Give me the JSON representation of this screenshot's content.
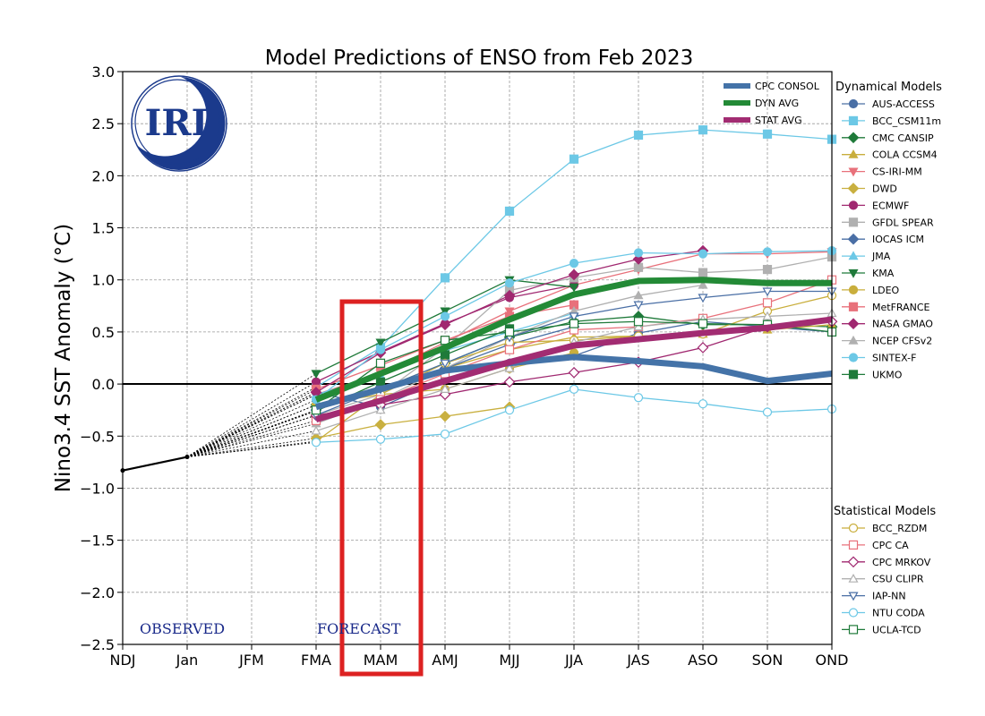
{
  "chart_data": {
    "type": "line",
    "title": "Model Predictions of ENSO from Feb 2023",
    "ylabel": "Nino3.4 SST Anomaly (°C)",
    "xlabel": "",
    "ylim": [
      -2.5,
      3.0
    ],
    "yticks": [
      3.0,
      2.5,
      2.0,
      1.5,
      1.0,
      0.5,
      0.0,
      -0.5,
      -1.0,
      -1.5,
      -2.0,
      -2.5
    ],
    "ytick_labels": [
      "3.0",
      "2.5",
      "2.0",
      "1.5",
      "1.0",
      "0.5",
      "0.0",
      "−0.5",
      "−1.0",
      "−1.5",
      "−2.0",
      "−2.5"
    ],
    "categories": [
      "NDJ",
      "Jan",
      "JFM",
      "FMA",
      "MAM",
      "AMJ",
      "MJJ",
      "JJA",
      "JAS",
      "ASO",
      "SON",
      "OND"
    ],
    "grid": true,
    "logo_text": "IRI",
    "observed_label": "OBSERVED",
    "forecast_label": "FORECAST",
    "observed": {
      "x": [
        0,
        1
      ],
      "values": [
        -0.83,
        -0.7
      ]
    },
    "highlight": {
      "from": "MAM",
      "color": "#dd2222"
    },
    "legend_consensus": [
      {
        "name": "CPC CONSOL",
        "color": "#4473a8",
        "values": [
          -0.22,
          -0.05,
          0.13,
          0.2,
          0.26,
          0.22,
          0.17,
          0.03,
          0.1
        ]
      },
      {
        "name": "DYN AVG",
        "color": "#238a36",
        "values": [
          -0.15,
          0.1,
          0.35,
          0.62,
          0.86,
          0.99,
          1.0,
          0.97,
          0.97
        ]
      },
      {
        "name": "STAT AVG",
        "color": "#a22c72",
        "values": [
          -0.34,
          -0.16,
          0.03,
          0.21,
          0.37,
          0.43,
          0.49,
          0.54,
          0.62
        ]
      }
    ],
    "dynamical_title": "Dynamical Models",
    "dynamical": [
      {
        "name": "AUS-ACCESS",
        "color": "#4a6fa5",
        "marker": "circle",
        "values": [
          -0.08,
          -0.22,
          0.05,
          0.2,
          0.27,
          0.49,
          0.6,
          0.55,
          0.5
        ]
      },
      {
        "name": "BCC_CSM11m",
        "color": "#6cc8e6",
        "marker": "square",
        "values": [
          -0.03,
          0.35,
          1.02,
          1.66,
          2.16,
          2.39,
          2.44,
          2.4,
          2.35
        ]
      },
      {
        "name": "CMC CANSIP",
        "color": "#1f7a3a",
        "marker": "diamond",
        "values": [
          -0.2,
          -0.05,
          0.2,
          0.45,
          0.6,
          0.65,
          0.57,
          0.57,
          0.55
        ]
      },
      {
        "name": "COLA CCSM4",
        "color": "#c9ae3c",
        "marker": "triangle",
        "values": [
          -0.25,
          -0.05,
          0.15,
          0.33,
          0.45,
          0.46,
          0.48,
          0.52,
          0.57
        ]
      },
      {
        "name": "CS-IRI-MM",
        "color": "#e8717b",
        "marker": "tridown",
        "values": [
          -0.1,
          0.1,
          0.4,
          0.7,
          0.95,
          1.1,
          1.25,
          1.25,
          1.27
        ]
      },
      {
        "name": "DWD",
        "color": "#c9b040",
        "marker": "diamond",
        "values": [
          -0.52,
          -0.39,
          -0.31,
          -0.22,
          null,
          null,
          null,
          null,
          null
        ]
      },
      {
        "name": "ECMWF",
        "color": "#a02870",
        "marker": "circle",
        "values": [
          0.02,
          0.31,
          0.58,
          0.83,
          0.95,
          null,
          null,
          null,
          null
        ]
      },
      {
        "name": "GFDL SPEAR",
        "color": "#b0b0b0",
        "marker": "square",
        "values": [
          -0.3,
          -0.1,
          0.35,
          0.9,
          1.02,
          1.12,
          1.07,
          1.1,
          1.22
        ]
      },
      {
        "name": "IOCAS ICM",
        "color": "#4a6fa5",
        "marker": "diamond",
        "values": [
          -0.25,
          -0.03,
          0.15,
          0.38,
          0.55,
          null,
          null,
          null,
          null
        ]
      },
      {
        "name": "JMA",
        "color": "#6cc8e6",
        "marker": "triangle",
        "values": [
          -0.1,
          0.08,
          0.32,
          0.5,
          0.68,
          null,
          null,
          null,
          null
        ]
      },
      {
        "name": "KMA",
        "color": "#1f7a3a",
        "marker": "tridown",
        "values": [
          0.1,
          0.4,
          0.7,
          1.0,
          0.93,
          null,
          null,
          null,
          null
        ]
      },
      {
        "name": "LDEO",
        "color": "#c9ae3c",
        "marker": "circle",
        "values": [
          -0.2,
          -0.1,
          -0.05,
          0.15,
          0.3,
          null,
          null,
          null,
          null
        ]
      },
      {
        "name": "MetFRANCE",
        "color": "#e8717b",
        "marker": "square",
        "values": [
          -0.05,
          0.18,
          0.42,
          0.65,
          0.76,
          null,
          null,
          null,
          null
        ]
      },
      {
        "name": "NASA GMAO",
        "color": "#a02870",
        "marker": "diamond",
        "values": [
          -0.08,
          0.3,
          0.57,
          0.85,
          1.05,
          1.2,
          1.28,
          null,
          null
        ]
      },
      {
        "name": "NCEP CFSv2",
        "color": "#b0b0b0",
        "marker": "triangle",
        "values": [
          -0.38,
          -0.15,
          0.15,
          0.45,
          0.7,
          0.85,
          0.95,
          null,
          null
        ]
      },
      {
        "name": "SINTEX-F",
        "color": "#6cc8e6",
        "marker": "circle",
        "values": [
          -0.15,
          0.33,
          0.65,
          0.97,
          1.16,
          1.26,
          1.25,
          1.27,
          1.28
        ]
      },
      {
        "name": "UKMO",
        "color": "#1f7a3a",
        "marker": "square",
        "values": [
          -0.26,
          0.02,
          0.28,
          0.53,
          null,
          null,
          null,
          null,
          null
        ]
      }
    ],
    "statistical_title": "Statistical Models",
    "statistical": [
      {
        "name": "BCC_RZDM",
        "color": "#c9ae3c",
        "marker": "circle",
        "values": [
          -0.55,
          -0.1,
          0.2,
          0.4,
          0.42,
          0.46,
          0.48,
          0.7,
          0.85
        ]
      },
      {
        "name": "CPC CA",
        "color": "#e8717b",
        "marker": "square",
        "values": [
          -0.35,
          -0.15,
          0.1,
          0.33,
          0.52,
          0.55,
          0.63,
          0.78,
          1.0
        ]
      },
      {
        "name": "CPC MRKOV",
        "color": "#a02870",
        "marker": "diamond",
        "values": [
          -0.3,
          -0.2,
          -0.1,
          0.02,
          0.11,
          0.21,
          0.35,
          0.55,
          0.6
        ]
      },
      {
        "name": "CSU CLIPR",
        "color": "#b0b0b0",
        "marker": "triangle",
        "values": [
          -0.45,
          -0.25,
          -0.05,
          0.15,
          0.4,
          0.55,
          0.62,
          0.65,
          0.68
        ]
      },
      {
        "name": "IAP-NN",
        "color": "#4a6fa5",
        "marker": "tridown",
        "values": [
          -0.3,
          -0.05,
          0.2,
          0.45,
          0.65,
          0.76,
          0.83,
          0.89,
          0.89
        ]
      },
      {
        "name": "NTU CODA",
        "color": "#6cc8e6",
        "marker": "circle",
        "values": [
          -0.56,
          -0.53,
          -0.48,
          -0.25,
          -0.05,
          -0.13,
          -0.19,
          -0.27,
          -0.24
        ]
      },
      {
        "name": "UCLA-TCD",
        "color": "#1f7a3a",
        "marker": "square",
        "values": [
          -0.25,
          0.2,
          0.42,
          0.5,
          0.58,
          0.6,
          0.58,
          0.57,
          0.5
        ]
      }
    ]
  }
}
